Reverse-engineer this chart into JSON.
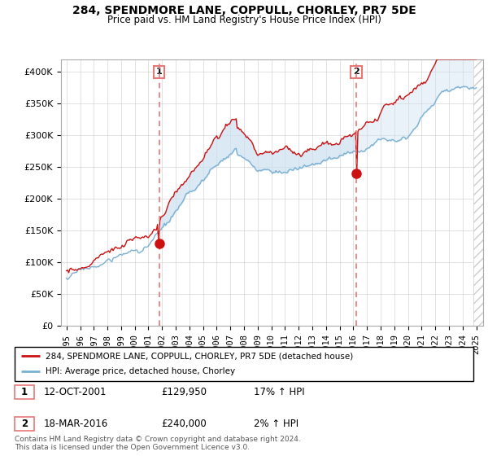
{
  "title": "284, SPENDMORE LANE, COPPULL, CHORLEY, PR7 5DE",
  "subtitle": "Price paid vs. HM Land Registry's House Price Index (HPI)",
  "legend_line1": "284, SPENDMORE LANE, COPPULL, CHORLEY, PR7 5DE (detached house)",
  "legend_line2": "HPI: Average price, detached house, Chorley",
  "footnote": "Contains HM Land Registry data © Crown copyright and database right 2024.\nThis data is licensed under the Open Government Licence v3.0.",
  "sale1_date": "12-OCT-2001",
  "sale1_price": "£129,950",
  "sale1_hpi": "17% ↑ HPI",
  "sale2_date": "18-MAR-2016",
  "sale2_price": "£240,000",
  "sale2_hpi": "2% ↑ HPI",
  "hpi_color": "#7ab0d4",
  "price_color": "#cc1111",
  "vline_color": "#e87878",
  "sale1_x": 2001.78,
  "sale1_y": 129950,
  "sale2_x": 2016.21,
  "sale2_y": 240000,
  "ylim": [
    0,
    420000
  ],
  "xlim": [
    1994.6,
    2025.5
  ],
  "yticks": [
    0,
    50000,
    100000,
    150000,
    200000,
    250000,
    300000,
    350000,
    400000
  ],
  "ytick_labels": [
    "£0",
    "£50K",
    "£100K",
    "£150K",
    "£200K",
    "£250K",
    "£300K",
    "£350K",
    "£400K"
  ],
  "xticks": [
    1995,
    1996,
    1997,
    1998,
    1999,
    2000,
    2001,
    2002,
    2003,
    2004,
    2005,
    2006,
    2007,
    2008,
    2009,
    2010,
    2011,
    2012,
    2013,
    2014,
    2015,
    2016,
    2017,
    2018,
    2019,
    2020,
    2021,
    2022,
    2023,
    2024,
    2025
  ],
  "fill_color": "#cce0f0",
  "hatch_color": "#cccccc"
}
